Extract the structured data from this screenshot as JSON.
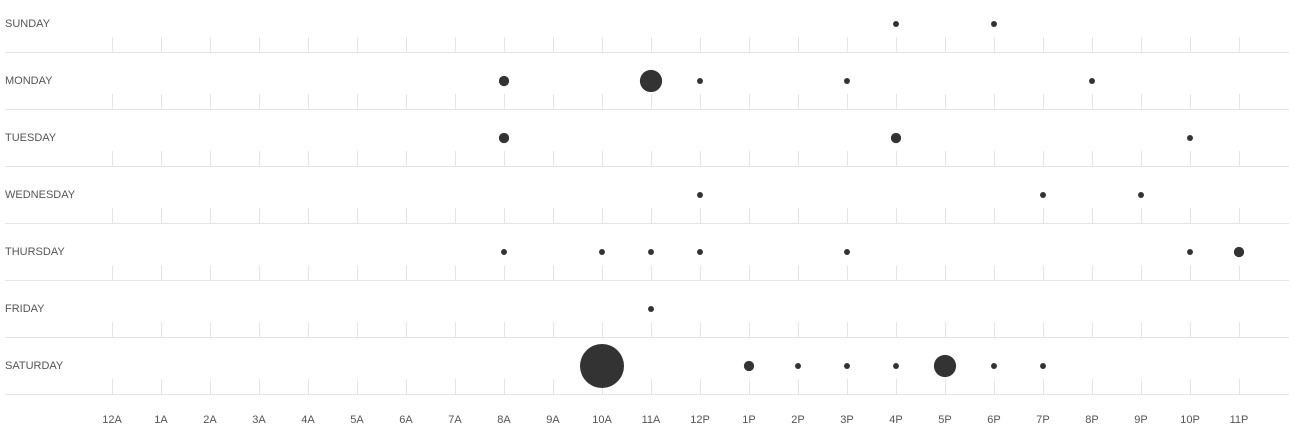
{
  "chart_data": {
    "type": "scatter",
    "x": [
      "12A",
      "1A",
      "2A",
      "3A",
      "4A",
      "5A",
      "6A",
      "7A",
      "8A",
      "9A",
      "10A",
      "11A",
      "12P",
      "1P",
      "2P",
      "3P",
      "4P",
      "5P",
      "6P",
      "7P",
      "8P",
      "9P",
      "10P",
      "11P"
    ],
    "rows": [
      "SUNDAY",
      "MONDAY",
      "TUESDAY",
      "WEDNESDAY",
      "THURSDAY",
      "FRIDAY",
      "SATURDAY"
    ],
    "points": [
      {
        "day": "SUNDAY",
        "hour": "4P",
        "value": 1
      },
      {
        "day": "SUNDAY",
        "hour": "6P",
        "value": 1
      },
      {
        "day": "MONDAY",
        "hour": "8A",
        "value": 3
      },
      {
        "day": "MONDAY",
        "hour": "11A",
        "value": 14
      },
      {
        "day": "MONDAY",
        "hour": "12P",
        "value": 1
      },
      {
        "day": "MONDAY",
        "hour": "3P",
        "value": 1
      },
      {
        "day": "MONDAY",
        "hour": "8P",
        "value": 1
      },
      {
        "day": "TUESDAY",
        "hour": "8A",
        "value": 3
      },
      {
        "day": "TUESDAY",
        "hour": "4P",
        "value": 3
      },
      {
        "day": "TUESDAY",
        "hour": "10P",
        "value": 1
      },
      {
        "day": "WEDNESDAY",
        "hour": "12P",
        "value": 1
      },
      {
        "day": "WEDNESDAY",
        "hour": "7P",
        "value": 1
      },
      {
        "day": "WEDNESDAY",
        "hour": "9P",
        "value": 1
      },
      {
        "day": "THURSDAY",
        "hour": "8A",
        "value": 1
      },
      {
        "day": "THURSDAY",
        "hour": "10A",
        "value": 1
      },
      {
        "day": "THURSDAY",
        "hour": "11A",
        "value": 1
      },
      {
        "day": "THURSDAY",
        "hour": "12P",
        "value": 1
      },
      {
        "day": "THURSDAY",
        "hour": "3P",
        "value": 1
      },
      {
        "day": "THURSDAY",
        "hour": "10P",
        "value": 1
      },
      {
        "day": "THURSDAY",
        "hour": "11P",
        "value": 3
      },
      {
        "day": "FRIDAY",
        "hour": "11A",
        "value": 1
      },
      {
        "day": "SATURDAY",
        "hour": "10A",
        "value": 55
      },
      {
        "day": "SATURDAY",
        "hour": "1P",
        "value": 3
      },
      {
        "day": "SATURDAY",
        "hour": "2P",
        "value": 1
      },
      {
        "day": "SATURDAY",
        "hour": "3P",
        "value": 1
      },
      {
        "day": "SATURDAY",
        "hour": "4P",
        "value": 1
      },
      {
        "day": "SATURDAY",
        "hour": "5P",
        "value": 14
      },
      {
        "day": "SATURDAY",
        "hour": "6P",
        "value": 1
      },
      {
        "day": "SATURDAY",
        "hour": "7P",
        "value": 1
      }
    ],
    "dot_color": "#333333",
    "text_color": "#555555",
    "grid_color": "#e5e5e5",
    "grid": true,
    "legend": "none"
  }
}
